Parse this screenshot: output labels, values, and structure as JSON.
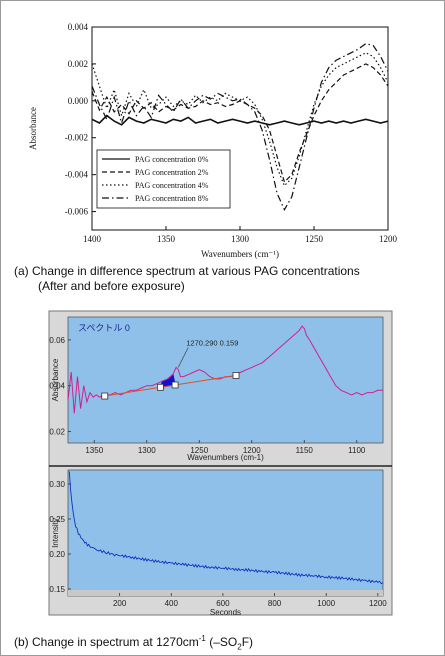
{
  "chart_data": [
    {
      "type": "line",
      "panel": "a",
      "xlabel": "Wavenumbers (cm⁻¹)",
      "ylabel": "Absorbance",
      "xlim": [
        1400,
        1200
      ],
      "ylim": [
        -0.007,
        0.004
      ],
      "x_reversed": true,
      "grid": false,
      "legend_position": "bottom-left",
      "xticks": [
        1400,
        1350,
        1300,
        1250,
        1200
      ],
      "yticks": [
        0.004,
        0.002,
        0.0,
        -0.002,
        -0.004,
        -0.006
      ],
      "ytick_labels": [
        "0.004",
        "0.002",
        "0.000",
        "-0.002",
        "-0.004",
        "-0.006"
      ],
      "series": [
        {
          "name": "PAG concentration 0%",
          "dash": "solid",
          "x": [
            1400,
            1395,
            1390,
            1385,
            1380,
            1375,
            1370,
            1365,
            1360,
            1355,
            1350,
            1345,
            1340,
            1335,
            1330,
            1325,
            1320,
            1315,
            1310,
            1305,
            1300,
            1295,
            1290,
            1285,
            1280,
            1275,
            1270,
            1265,
            1260,
            1255,
            1250,
            1245,
            1240,
            1235,
            1230,
            1225,
            1220,
            1215,
            1210,
            1205,
            1200
          ],
          "y": [
            -0.001,
            -0.0012,
            -0.0008,
            -0.0011,
            -0.0013,
            -0.0009,
            -0.0011,
            -0.0012,
            -0.001,
            -0.0011,
            -0.0012,
            -0.001,
            -0.0011,
            -0.0009,
            -0.0012,
            -0.0011,
            -0.001,
            -0.0012,
            -0.0011,
            -0.001,
            -0.0011,
            -0.0012,
            -0.0011,
            -0.0012,
            -0.0013,
            -0.0012,
            -0.0011,
            -0.0012,
            -0.0013,
            -0.0012,
            -0.0011,
            -0.0012,
            -0.0011,
            -0.0012,
            -0.0011,
            -0.0012,
            -0.0011,
            -0.001,
            -0.0011,
            -0.0012,
            -0.0011
          ]
        },
        {
          "name": "PAG concentration 2%",
          "dash": "dashed",
          "x": [
            1400,
            1395,
            1390,
            1385,
            1380,
            1375,
            1370,
            1365,
            1360,
            1355,
            1350,
            1345,
            1340,
            1335,
            1330,
            1325,
            1320,
            1315,
            1310,
            1305,
            1300,
            1295,
            1290,
            1285,
            1280,
            1275,
            1270,
            1265,
            1260,
            1255,
            1250,
            1245,
            1240,
            1235,
            1230,
            1225,
            1220,
            1215,
            1210,
            1205,
            1200
          ],
          "y": [
            0.0005,
            -0.0005,
            0.0002,
            -0.0006,
            -0.0002,
            -0.0007,
            0.0,
            -0.0004,
            -0.0001,
            -0.0006,
            -0.0003,
            -0.0005,
            -0.0002,
            -0.0004,
            -0.0003,
            0.0,
            -0.0002,
            -0.0001,
            -0.0003,
            -0.0002,
            0.0,
            -0.0002,
            -0.0004,
            -0.0008,
            -0.0016,
            -0.003,
            -0.0044,
            -0.004,
            -0.0028,
            -0.0018,
            -0.0008,
            0.0,
            0.0006,
            0.001,
            0.0014,
            0.0016,
            0.0018,
            0.002,
            0.0018,
            0.0014,
            0.0008
          ]
        },
        {
          "name": "PAG concentration 4%",
          "dash": "dotted",
          "x": [
            1400,
            1395,
            1390,
            1385,
            1380,
            1375,
            1370,
            1365,
            1360,
            1355,
            1350,
            1345,
            1340,
            1335,
            1330,
            1325,
            1320,
            1315,
            1310,
            1305,
            1300,
            1295,
            1290,
            1285,
            1280,
            1275,
            1270,
            1265,
            1260,
            1255,
            1250,
            1245,
            1240,
            1235,
            1230,
            1225,
            1220,
            1215,
            1210,
            1205,
            1200
          ],
          "y": [
            0.002,
            0.0008,
            -0.0004,
            0.0006,
            -0.0008,
            0.0004,
            -0.0003,
            0.0006,
            -0.0004,
            -0.0002,
            0.0002,
            -0.0003,
            0.0,
            -0.0002,
            0.0003,
            -0.0001,
            0.0002,
            0.0,
            0.0004,
            0.0002,
            0.0,
            0.0002,
            -0.0002,
            -0.001,
            -0.0022,
            -0.0036,
            -0.0046,
            -0.0042,
            -0.003,
            -0.0016,
            -0.0002,
            0.0008,
            0.0014,
            0.0018,
            0.002,
            0.0022,
            0.0024,
            0.0026,
            0.0024,
            0.0018,
            0.001
          ]
        },
        {
          "name": "PAG concentration 8%",
          "dash": "dashdot",
          "x": [
            1400,
            1395,
            1390,
            1385,
            1380,
            1375,
            1370,
            1365,
            1360,
            1355,
            1350,
            1345,
            1340,
            1335,
            1330,
            1325,
            1320,
            1315,
            1310,
            1305,
            1300,
            1295,
            1290,
            1285,
            1280,
            1275,
            1270,
            1265,
            1260,
            1255,
            1250,
            1245,
            1240,
            1235,
            1230,
            1225,
            1220,
            1215,
            1210,
            1205,
            1200
          ],
          "y": [
            0.0008,
            -0.0002,
            -0.001,
            0.0002,
            -0.0012,
            0.0,
            -0.0008,
            -0.0003,
            -0.0009,
            0.0003,
            -0.0002,
            -0.0006,
            0.0001,
            -0.0004,
            0.0,
            0.0003,
            0.0001,
            0.0004,
            0.0002,
            0.0,
            0.0001,
            -0.0002,
            -0.0006,
            -0.0016,
            -0.0032,
            -0.005,
            -0.0059,
            -0.0052,
            -0.0036,
            -0.002,
            -0.0004,
            0.001,
            0.0018,
            0.0022,
            0.0024,
            0.0026,
            0.0028,
            0.0031,
            0.003,
            0.0024,
            0.0016
          ]
        }
      ]
    },
    {
      "type": "line",
      "panel": "b-upper",
      "title": "スペクトル 0",
      "xlabel": "Wavenumbers (cm-1)",
      "ylabel": "Absorbance",
      "xlim": [
        1375,
        1075
      ],
      "ylim": [
        0.015,
        0.07
      ],
      "x_reversed": true,
      "background": "#8fc0ea",
      "xticks": [
        1350,
        1300,
        1250,
        1200,
        1150,
        1100
      ],
      "yticks": [
        0.06,
        0.04,
        0.02
      ],
      "ytick_labels": [
        "0.06",
        "0.04",
        "0.02"
      ],
      "annotation": "1270.290  0.159",
      "baseline_markers": [
        1340,
        1287,
        1273,
        1215
      ],
      "series": [
        {
          "name": "spectrum",
          "color": "#d0208c",
          "x": [
            1375,
            1372,
            1369,
            1366,
            1363,
            1360,
            1357,
            1354,
            1351,
            1348,
            1345,
            1340,
            1335,
            1330,
            1325,
            1320,
            1315,
            1310,
            1305,
            1300,
            1295,
            1290,
            1285,
            1280,
            1275,
            1272,
            1270,
            1268,
            1265,
            1260,
            1255,
            1250,
            1245,
            1240,
            1235,
            1230,
            1225,
            1220,
            1215,
            1210,
            1205,
            1200,
            1195,
            1190,
            1185,
            1180,
            1175,
            1170,
            1165,
            1160,
            1155,
            1152,
            1150,
            1148,
            1145,
            1140,
            1135,
            1130,
            1125,
            1120,
            1115,
            1110,
            1105,
            1100,
            1095,
            1090,
            1085,
            1080,
            1075
          ],
          "y": [
            0.034,
            0.046,
            0.028,
            0.044,
            0.03,
            0.04,
            0.033,
            0.037,
            0.035,
            0.036,
            0.035,
            0.036,
            0.036,
            0.037,
            0.036,
            0.037,
            0.038,
            0.038,
            0.039,
            0.04,
            0.04,
            0.041,
            0.042,
            0.043,
            0.045,
            0.048,
            0.047,
            0.044,
            0.044,
            0.045,
            0.046,
            0.047,
            0.046,
            0.044,
            0.043,
            0.043,
            0.044,
            0.044,
            0.045,
            0.046,
            0.047,
            0.048,
            0.049,
            0.05,
            0.052,
            0.054,
            0.056,
            0.058,
            0.06,
            0.062,
            0.064,
            0.066,
            0.065,
            0.062,
            0.06,
            0.056,
            0.052,
            0.048,
            0.044,
            0.04,
            0.038,
            0.037,
            0.036,
            0.037,
            0.036,
            0.037,
            0.037,
            0.038,
            0.038
          ]
        }
      ]
    },
    {
      "type": "line",
      "panel": "b-lower",
      "xlabel": "Seconds",
      "ylabel": "Intensity",
      "xlim": [
        0,
        1220
      ],
      "ylim": [
        0.14,
        0.32
      ],
      "background": "#8fc0ea",
      "xticks": [
        200,
        400,
        600,
        800,
        1000,
        1200
      ],
      "yticks": [
        0.3,
        0.25,
        0.2,
        0.15
      ],
      "ytick_labels": [
        "0.30",
        "0.25",
        "0.20",
        "0.15"
      ],
      "series": [
        {
          "name": "intensity",
          "color": "#1030c0",
          "x": [
            5,
            10,
            15,
            20,
            25,
            30,
            40,
            50,
            60,
            70,
            80,
            100,
            120,
            150,
            180,
            200,
            250,
            300,
            350,
            400,
            450,
            500,
            550,
            600,
            650,
            700,
            750,
            800,
            850,
            900,
            950,
            1000,
            1050,
            1100,
            1150,
            1200,
            1220
          ],
          "y": [
            0.318,
            0.29,
            0.272,
            0.258,
            0.248,
            0.24,
            0.23,
            0.224,
            0.219,
            0.215,
            0.212,
            0.208,
            0.205,
            0.202,
            0.199,
            0.198,
            0.195,
            0.192,
            0.189,
            0.187,
            0.185,
            0.183,
            0.181,
            0.18,
            0.178,
            0.177,
            0.175,
            0.174,
            0.172,
            0.17,
            0.169,
            0.167,
            0.166,
            0.164,
            0.162,
            0.16,
            0.159
          ]
        }
      ]
    }
  ],
  "captions": {
    "a_line1": "(a)  Change in difference spectrum at various PAG concentrations",
    "a_line2": "(After and before exposure)",
    "b_prefix": "(b)  Change in spectrum at 1270cm",
    "b_sup": "-1",
    "b_paren_open": " (–SO",
    "b_sub": "2",
    "b_end": "F)"
  }
}
